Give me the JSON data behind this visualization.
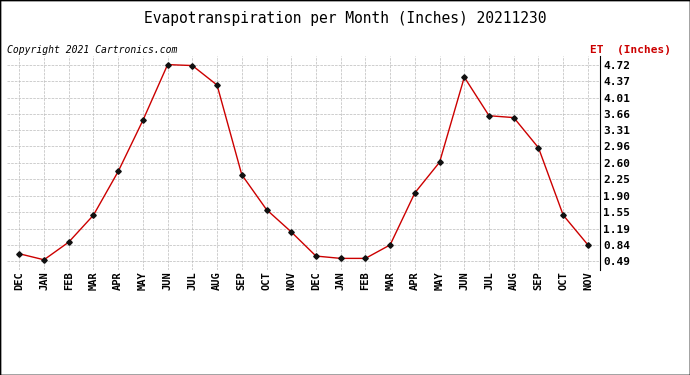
{
  "title": "Evapotranspiration per Month (Inches) 20211230",
  "copyright": "Copyright 2021 Cartronics.com",
  "legend_label": "ET  (Inches)",
  "categories": [
    "DEC",
    "JAN",
    "FEB",
    "MAR",
    "APR",
    "MAY",
    "JUN",
    "JUL",
    "AUG",
    "SEP",
    "OCT",
    "NOV",
    "DEC",
    "JAN",
    "FEB",
    "MAR",
    "APR",
    "MAY",
    "JUN",
    "JUL",
    "AUG",
    "SEP",
    "OCT",
    "NOV"
  ],
  "values": [
    0.65,
    0.52,
    0.9,
    1.48,
    2.42,
    3.52,
    4.72,
    4.7,
    4.28,
    2.35,
    1.6,
    1.12,
    0.6,
    0.55,
    0.55,
    0.84,
    1.96,
    2.62,
    4.45,
    3.62,
    3.58,
    2.93,
    1.48,
    0.84
  ],
  "yticks": [
    0.49,
    0.84,
    1.19,
    1.55,
    1.9,
    2.25,
    2.6,
    2.96,
    3.31,
    3.66,
    4.01,
    4.37,
    4.72
  ],
  "ylim": [
    0.3,
    4.9
  ],
  "line_color": "#cc0000",
  "marker_color": "#111111",
  "grid_color": "#bbbbbb",
  "background_color": "#ffffff",
  "border_color": "#000000",
  "title_fontsize": 10.5,
  "copyright_fontsize": 7,
  "legend_color": "#cc0000",
  "legend_fontsize": 8,
  "tick_fontsize": 7.5,
  "ytick_fontsize": 8
}
